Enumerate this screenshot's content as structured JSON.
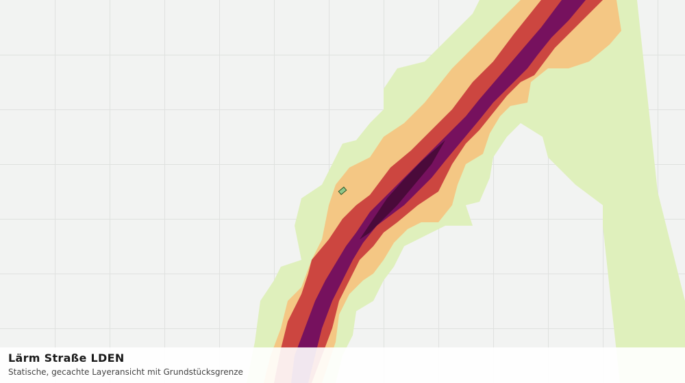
{
  "panel": {
    "title": "Lärm Straße LDEN",
    "subtitle": "Statische, gecachte Layeransicht mit Grundstücksgrenze"
  }
}
